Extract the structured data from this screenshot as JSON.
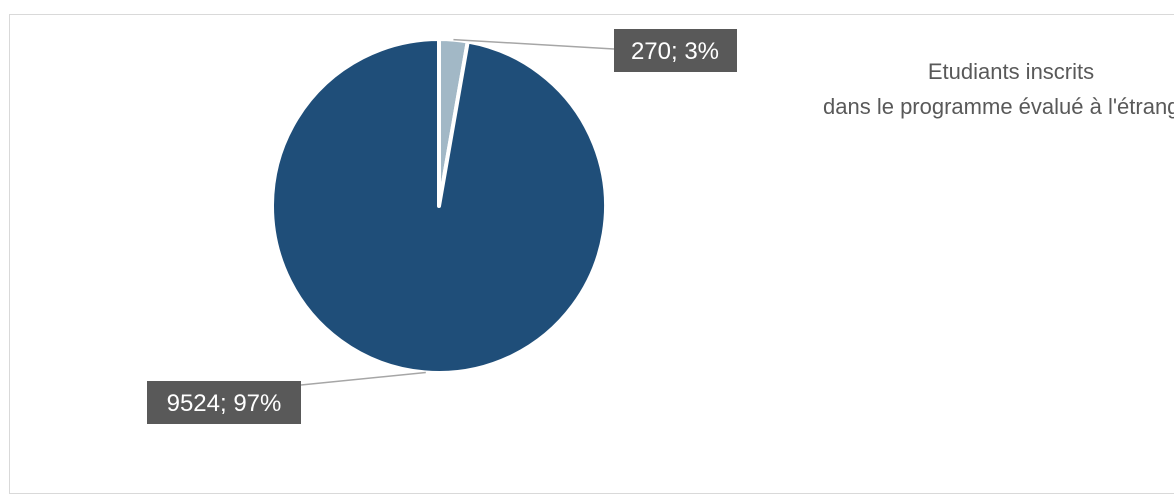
{
  "chart_data": {
    "type": "pie",
    "title": "",
    "slices": [
      {
        "value": 270,
        "percent": 3,
        "label": "270; 3%",
        "color": "#a2b8c6"
      },
      {
        "value": 9524,
        "percent": 97,
        "label": "9524; 97%",
        "color": "#1f4e79"
      }
    ],
    "legend_placement": "right",
    "legend_lines": [
      "Etudiants inscrits",
      "dans le programme évalué à l'étranger"
    ]
  }
}
